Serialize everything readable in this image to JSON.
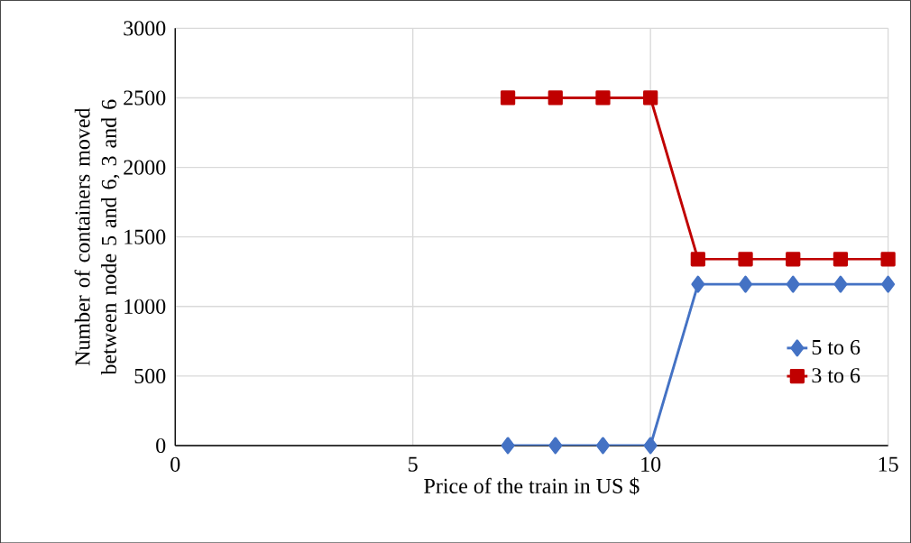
{
  "chart_data": {
    "type": "line",
    "xlabel": "Price of the train in US $",
    "ylabel": "Number of containers moved between node 5 and 6, 3 and 6",
    "x": [
      7,
      8,
      9,
      10,
      11,
      12,
      13,
      14,
      15
    ],
    "series": [
      {
        "name": "5 to 6",
        "color": "#4472c4",
        "marker": "diamond",
        "values": [
          0,
          0,
          0,
          0,
          1160,
          1160,
          1160,
          1160,
          1160
        ]
      },
      {
        "name": "3 to 6",
        "color": "#c00000",
        "marker": "square",
        "values": [
          2500,
          2500,
          2500,
          2500,
          1340,
          1340,
          1340,
          1340,
          1340
        ]
      }
    ],
    "xlim": [
      0,
      15
    ],
    "xticks": [
      0,
      5,
      10,
      15
    ],
    "ylim": [
      0,
      3000
    ],
    "yticks": [
      0,
      500,
      1000,
      1500,
      2000,
      2500,
      3000
    ],
    "grid": true,
    "legend": "right",
    "line_style": "solid"
  }
}
